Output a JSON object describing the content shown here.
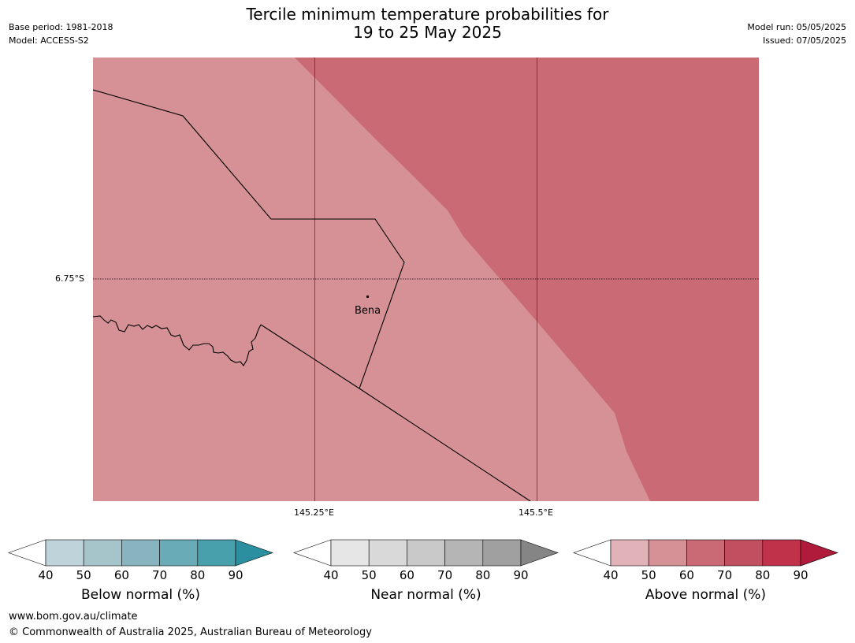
{
  "title_line1": "Tercile minimum temperature probabilities for",
  "title_line2": "19 to 25 May 2025",
  "meta_left": [
    "Base period: 1981-2018",
    "Model: ACCESS-S2"
  ],
  "meta_right": [
    "Model run: 05/05/2025",
    "Issued: 07/05/2025"
  ],
  "map": {
    "lat_label": "6.75°S",
    "lon_labels": [
      "145.25°E",
      "145.5°E"
    ],
    "place": "Bena",
    "fill_colors": {
      "above_50_60": "#d69197",
      "above_60_70": "#ca6a75"
    }
  },
  "colorbars": [
    {
      "title": "Below normal (%)",
      "ticks": [
        "40",
        "50",
        "60",
        "70",
        "80",
        "90"
      ],
      "colors": [
        "#ffffff",
        "#bfd3da",
        "#a6c5cb",
        "#88b4c0",
        "#6aabb8",
        "#48a0ad",
        "#2b8fa0"
      ]
    },
    {
      "title": "Near normal (%)",
      "ticks": [
        "40",
        "50",
        "60",
        "70",
        "80",
        "90"
      ],
      "colors": [
        "#ffffff",
        "#e6e6e6",
        "#d9d9d9",
        "#c9c9c9",
        "#b5b5b5",
        "#a0a0a0",
        "#858585"
      ]
    },
    {
      "title": "Above normal (%)",
      "ticks": [
        "40",
        "50",
        "60",
        "70",
        "80",
        "90"
      ],
      "colors": [
        "#ffffff",
        "#e1b3b9",
        "#d69197",
        "#ca6a75",
        "#c24f60",
        "#bf324a",
        "#b01b3b"
      ]
    }
  ],
  "footer": {
    "url": "www.bom.gov.au/climate",
    "copyright": "© Commonwealth of Australia 2025, Australian Bureau of Meteorology"
  }
}
